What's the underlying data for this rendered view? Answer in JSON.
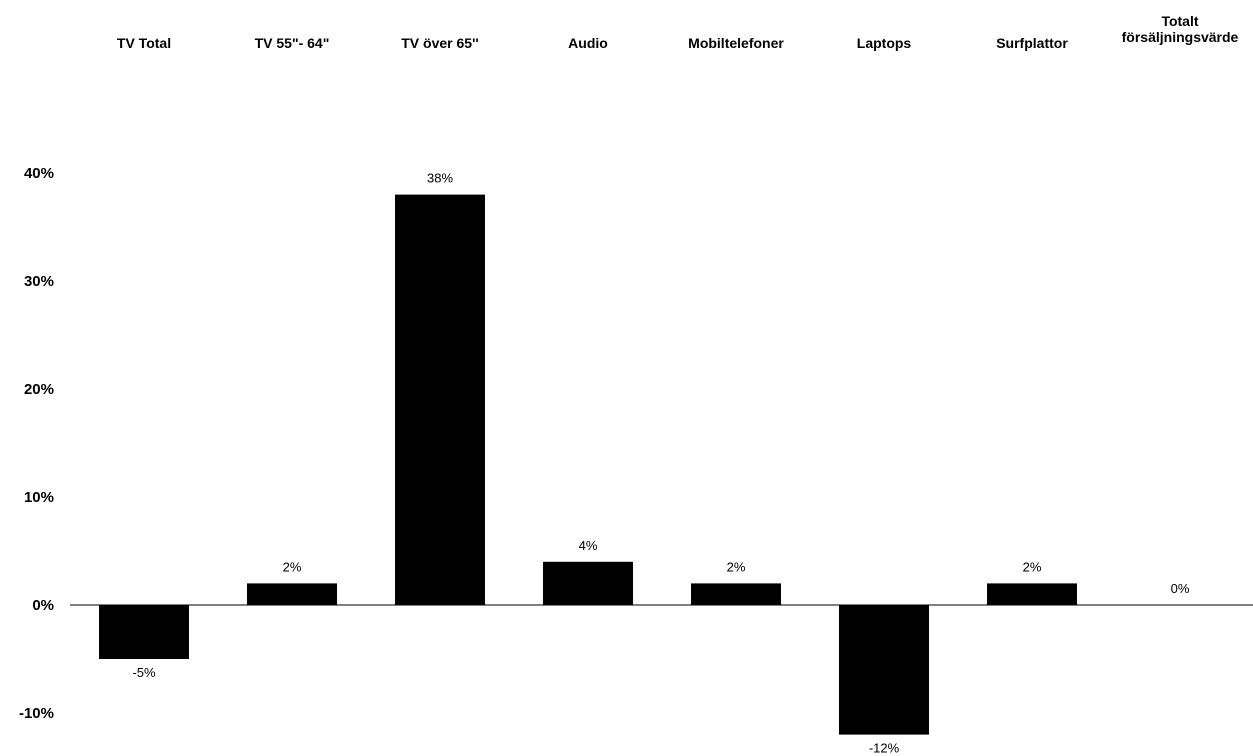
{
  "chart_data": {
    "type": "bar",
    "categories": [
      [
        "TV Total"
      ],
      [
        "TV 55\"- 64\""
      ],
      [
        "TV över 65''"
      ],
      [
        "Audio"
      ],
      [
        "Mobiltelefoner"
      ],
      [
        "Laptops"
      ],
      [
        "Surfplattor"
      ],
      [
        "Totalt",
        "försäljningsvärde"
      ]
    ],
    "values": [
      -5,
      2,
      38,
      4,
      2,
      -12,
      2,
      0
    ],
    "data_labels": [
      "-5%",
      "2%",
      "38%",
      "4%",
      "2%",
      "-12%",
      "2%",
      "0%"
    ],
    "ylim": [
      -10,
      40
    ],
    "yticks": [
      40,
      30,
      20,
      10,
      0,
      -10
    ],
    "ytick_labels": [
      "40%",
      "30%",
      "20%",
      "10%",
      "0%",
      "-10%"
    ],
    "category_axis_position": "top",
    "bar_color": "#000000",
    "grid": false,
    "legend": "none"
  }
}
